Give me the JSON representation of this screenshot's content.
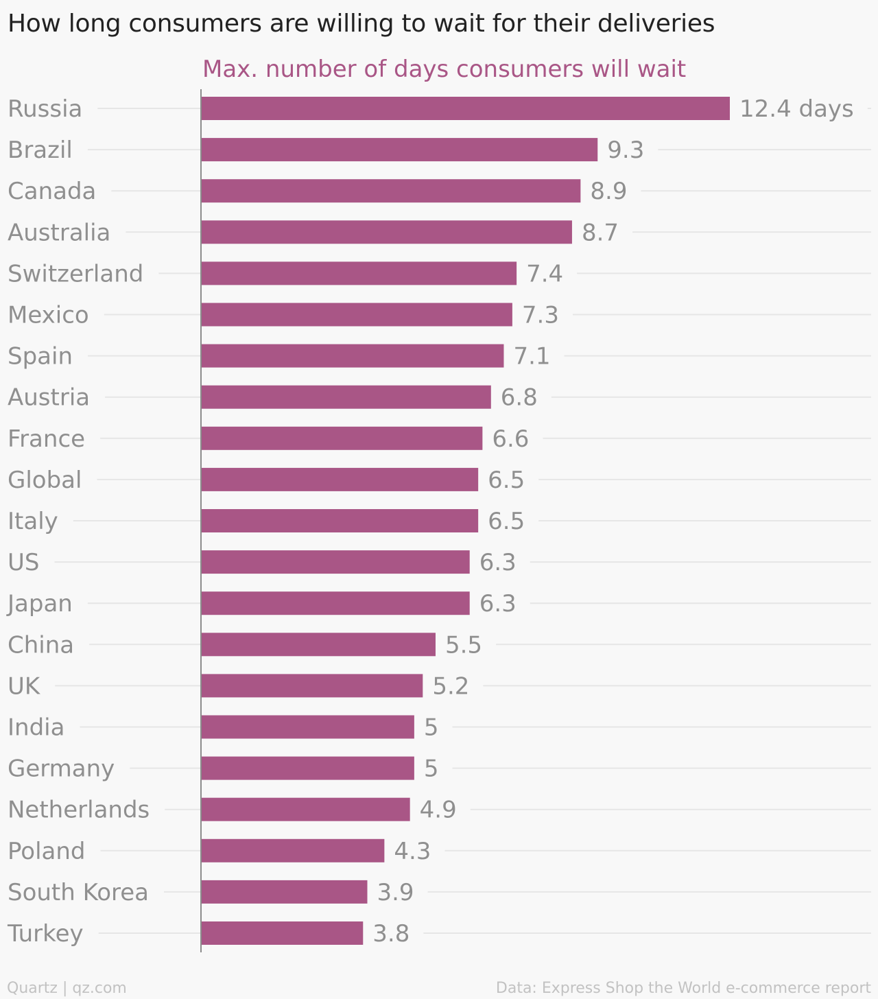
{
  "title": "How long consumers are willing to wait for their deliveries",
  "footer": {
    "credit": "Quartz | qz.com",
    "source": "Data: Express Shop the World e-commerce report"
  },
  "colors": {
    "bar": "#a95686",
    "series_label": "#a95686",
    "category_label": "#8f8f8f",
    "value_label": "#8f8f8f",
    "gridline": "#e6e6e6",
    "axis": "#8c8c8c"
  },
  "chart_data": {
    "type": "bar",
    "orientation": "horizontal",
    "title": "How long consumers are willing to wait for their deliveries",
    "series_label": "Max. number of days consumers will wait",
    "value_unit_label": "days",
    "categories": [
      "Russia",
      "Brazil",
      "Canada",
      "Australia",
      "Switzerland",
      "Mexico",
      "Spain",
      "Austria",
      "France",
      "Global",
      "Italy",
      "US",
      "Japan",
      "China",
      "UK",
      "India",
      "Germany",
      "Netherlands",
      "Poland",
      "South Korea",
      "Turkey"
    ],
    "values": [
      12.4,
      9.3,
      8.9,
      8.7,
      7.4,
      7.3,
      7.1,
      6.8,
      6.6,
      6.5,
      6.5,
      6.3,
      6.3,
      5.5,
      5.2,
      5,
      5,
      4.9,
      4.3,
      3.9,
      3.8
    ],
    "xlim": [
      0,
      12.4
    ],
    "grid": true
  }
}
